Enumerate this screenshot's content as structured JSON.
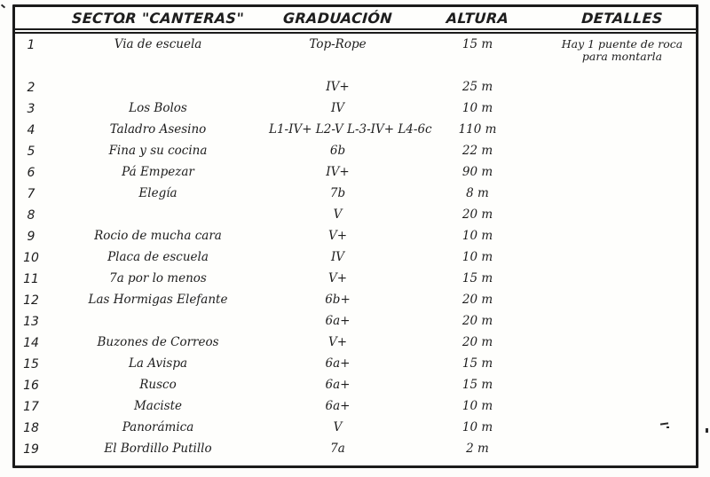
{
  "paper_color": "#fdfdfb",
  "ink_color": "#1d1d1d",
  "table": {
    "headers": {
      "number": "",
      "sector": "SECTOR \"CANTERAS\"",
      "graduacion": "GRADUACIÓN",
      "altura": "ALTURA",
      "detalles": "DETALLES"
    },
    "rows": [
      {
        "num": "1",
        "sector": "Via de escuela",
        "grad": "Top-Rope",
        "altura": "15 m",
        "detalles": "Hay 1 puente de roca para montarla"
      },
      {
        "num": "2",
        "sector": "",
        "grad": "IV+",
        "altura": "25 m",
        "detalles": ""
      },
      {
        "num": "3",
        "sector": "Los Bolos",
        "grad": "IV",
        "altura": "10 m",
        "detalles": ""
      },
      {
        "num": "4",
        "sector": "Taladro Asesino",
        "grad": "L1-IV+ L2-V L-3-IV+ L4-6c",
        "altura": "110 m",
        "detalles": ""
      },
      {
        "num": "5",
        "sector": "Fina y su cocina",
        "grad": "6b",
        "altura": "22 m",
        "detalles": ""
      },
      {
        "num": "6",
        "sector": "Pá Empezar",
        "grad": "IV+",
        "altura": "90 m",
        "detalles": ""
      },
      {
        "num": "7",
        "sector": "Elegía",
        "grad": "7b",
        "altura": "8 m",
        "detalles": ""
      },
      {
        "num": "8",
        "sector": "",
        "grad": "V",
        "altura": "20 m",
        "detalles": ""
      },
      {
        "num": "9",
        "sector": "Rocio de mucha cara",
        "grad": "V+",
        "altura": "10 m",
        "detalles": ""
      },
      {
        "num": "10",
        "sector": "Placa de escuela",
        "grad": "IV",
        "altura": "10 m",
        "detalles": ""
      },
      {
        "num": "11",
        "sector": "7a por lo menos",
        "grad": "V+",
        "altura": "15 m",
        "detalles": ""
      },
      {
        "num": "12",
        "sector": "Las Hormigas Elefante",
        "grad": "6b+",
        "altura": "20 m",
        "detalles": ""
      },
      {
        "num": "13",
        "sector": "",
        "grad": "6a+",
        "altura": "20 m",
        "detalles": ""
      },
      {
        "num": "14",
        "sector": "Buzones de Correos",
        "grad": "V+",
        "altura": "20 m",
        "detalles": ""
      },
      {
        "num": "15",
        "sector": "La Avispa",
        "grad": "6a+",
        "altura": "15 m",
        "detalles": ""
      },
      {
        "num": "16",
        "sector": "Rusco",
        "grad": "6a+",
        "altura": "15 m",
        "detalles": ""
      },
      {
        "num": "17",
        "sector": "Maciste",
        "grad": "6a+",
        "altura": "10 m",
        "detalles": ""
      },
      {
        "num": "18",
        "sector": "Panorámica",
        "grad": "V",
        "altura": "10 m",
        "detalles": ""
      },
      {
        "num": "19",
        "sector": "El Bordillo Putillo",
        "grad": "7a",
        "altura": "2 m",
        "detalles": ""
      }
    ]
  }
}
